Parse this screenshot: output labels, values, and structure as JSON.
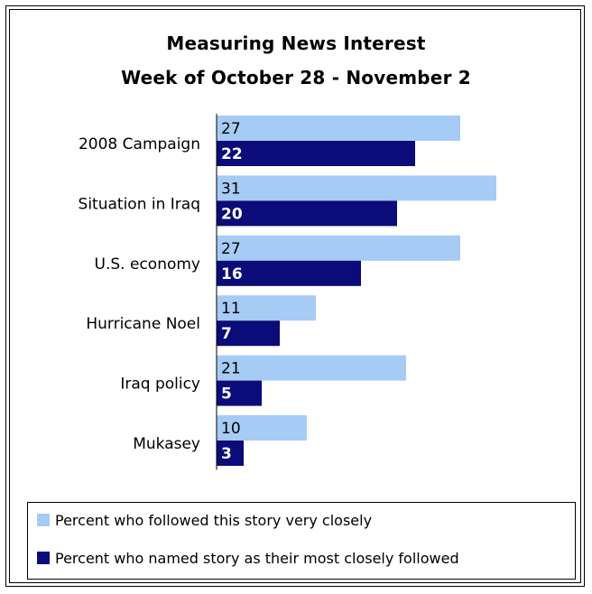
{
  "chart_data": {
    "type": "bar",
    "orientation": "horizontal",
    "title": "Measuring News Interest",
    "subtitle": "Week of October 28 - November 2",
    "categories": [
      "2008 Campaign",
      "Situation in Iraq",
      "U.S. economy",
      "Hurricane Noel",
      "Iraq policy",
      "Mukasey"
    ],
    "series": [
      {
        "name": "Percent who followed this story very closely",
        "color": "#a6cbf5",
        "label_color": "#000000",
        "values": [
          27,
          31,
          27,
          11,
          21,
          10
        ]
      },
      {
        "name": "Percent who named story as their most closely followed",
        "color": "#0b0b7a",
        "label_color": "#ffffff",
        "values": [
          22,
          20,
          16,
          7,
          5,
          3
        ]
      }
    ],
    "xlim": [
      0,
      31
    ],
    "grid": false,
    "legend_position": "bottom"
  }
}
